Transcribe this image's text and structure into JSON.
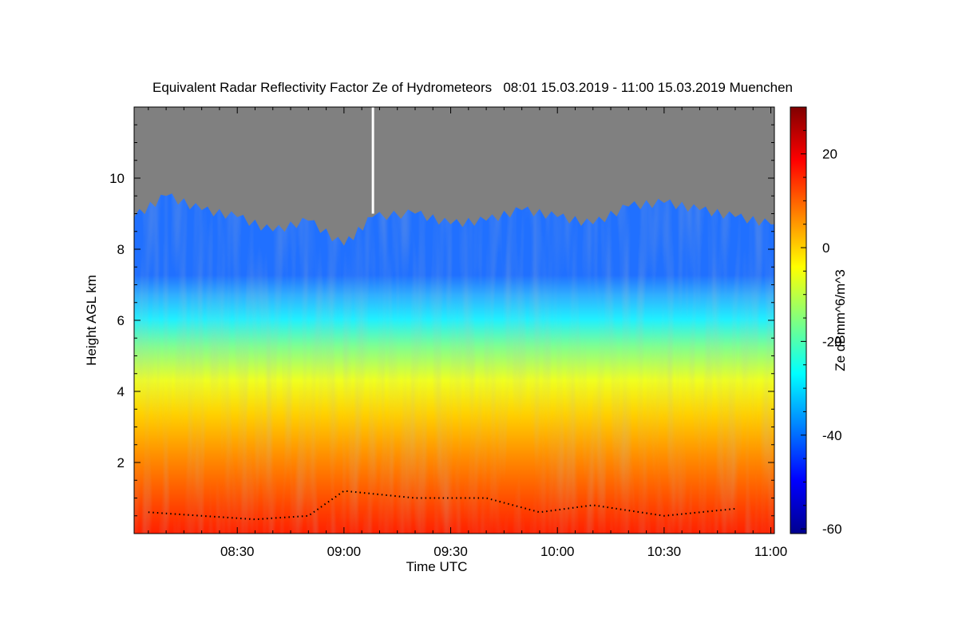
{
  "chart_data": {
    "type": "heatmap",
    "title": "Equivalent Radar Reflectivity Factor Ze of Hydrometeors   08:01 15.03.2019 - 11:00 15.03.2019 Muenchen",
    "xlabel": "Time UTC",
    "ylabel": "Height AGL km",
    "colorbar_label": "Ze dBmm^6/m^3",
    "x_ticks": [
      {
        "label": "08:30",
        "minutes": 30
      },
      {
        "label": "09:00",
        "minutes": 60
      },
      {
        "label": "09:30",
        "minutes": 90
      },
      {
        "label": "10:00",
        "minutes": 120
      },
      {
        "label": "10:30",
        "minutes": 150
      },
      {
        "label": "11:00",
        "minutes": 180
      }
    ],
    "xlim_minutes_after_0800": [
      1,
      181
    ],
    "ylim_km": [
      0,
      12
    ],
    "y_ticks": [
      2,
      4,
      6,
      8,
      10
    ],
    "colorbar_ticks": [
      20,
      0,
      -20,
      -40,
      -60
    ],
    "colorbar_range_dBZ": [
      -61,
      30
    ],
    "background_color": "#808080",
    "colormap": [
      "#00008f",
      "#0000ff",
      "#0080ff",
      "#00ffff",
      "#80ff80",
      "#ffff00",
      "#ff8000",
      "#ff0000",
      "#800000"
    ],
    "cloud_top_km": [
      {
        "minutes": 1,
        "km": 8.9
      },
      {
        "minutes": 10,
        "km": 9.5
      },
      {
        "minutes": 20,
        "km": 9.1
      },
      {
        "minutes": 30,
        "km": 8.9
      },
      {
        "minutes": 40,
        "km": 8.5
      },
      {
        "minutes": 50,
        "km": 8.8
      },
      {
        "minutes": 60,
        "km": 8.1
      },
      {
        "minutes": 68,
        "km": 8.9
      },
      {
        "minutes": 80,
        "km": 9.0
      },
      {
        "minutes": 90,
        "km": 8.7
      },
      {
        "minutes": 100,
        "km": 8.8
      },
      {
        "minutes": 110,
        "km": 9.1
      },
      {
        "minutes": 120,
        "km": 8.9
      },
      {
        "minutes": 130,
        "km": 8.7
      },
      {
        "minutes": 140,
        "km": 9.2
      },
      {
        "minutes": 150,
        "km": 9.3
      },
      {
        "minutes": 160,
        "km": 9.1
      },
      {
        "minutes": 170,
        "km": 8.9
      },
      {
        "minutes": 180,
        "km": 8.7
      }
    ],
    "cloud_base_km": [
      {
        "minutes": 5,
        "km": 0.6
      },
      {
        "minutes": 20,
        "km": 0.5
      },
      {
        "minutes": 35,
        "km": 0.4
      },
      {
        "minutes": 50,
        "km": 0.5
      },
      {
        "minutes": 60,
        "km": 1.2
      },
      {
        "minutes": 80,
        "km": 1.0
      },
      {
        "minutes": 100,
        "km": 1.0
      },
      {
        "minutes": 115,
        "km": 0.6
      },
      {
        "minutes": 130,
        "km": 0.8
      },
      {
        "minutes": 150,
        "km": 0.5
      },
      {
        "minutes": 170,
        "km": 0.7
      }
    ]
  }
}
